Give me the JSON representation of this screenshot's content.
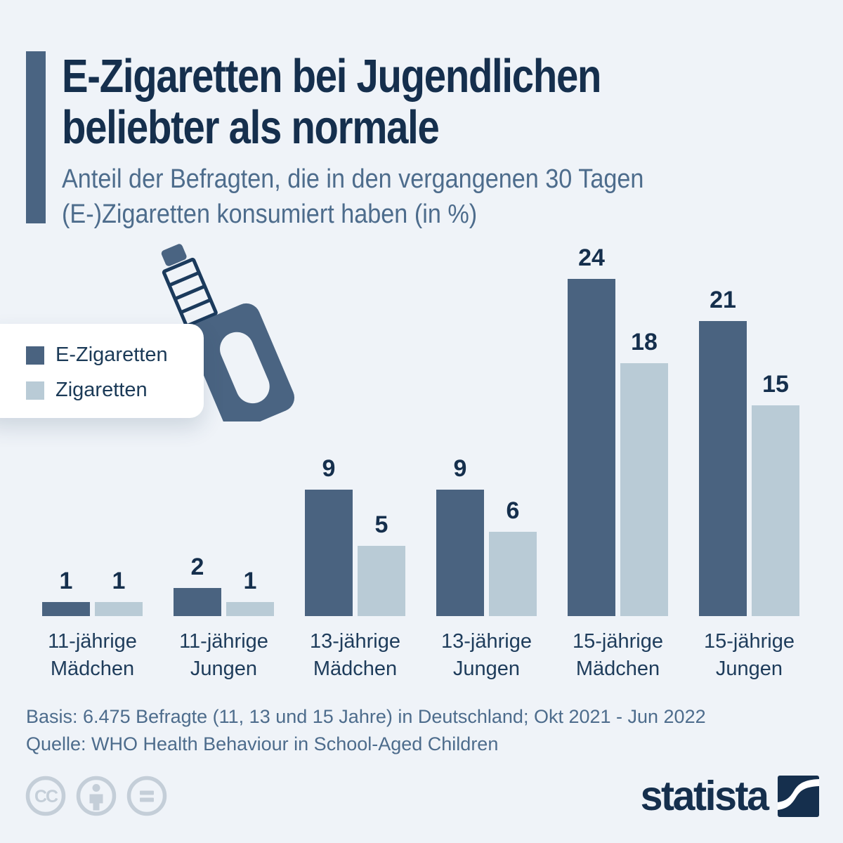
{
  "header": {
    "title_line1": "E-Zigaretten bei Jugendlichen",
    "title_line2": "beliebter als normale",
    "subtitle_line1": "Anteil der Befragten, die in den vergangenen 30 Tagen",
    "subtitle_line2": "(E-)Zigaretten konsumiert haben (in %)"
  },
  "legend": {
    "items": [
      {
        "label": "E-Zigaretten",
        "color": "#4a6380"
      },
      {
        "label": "Zigaretten",
        "color": "#b9cbd6"
      }
    ]
  },
  "chart_data": {
    "type": "bar",
    "title": "E-Zigaretten bei Jugendlichen beliebter als normale",
    "subtitle": "Anteil der Befragten, die in den vergangenen 30 Tagen (E-)Zigaretten konsumiert haben (in %)",
    "categories": [
      [
        "11-jährige",
        "Mädchen"
      ],
      [
        "11-jährige",
        "Jungen"
      ],
      [
        "13-jährige",
        "Mädchen"
      ],
      [
        "13-jährige",
        "Jungen"
      ],
      [
        "15-jährige",
        "Mädchen"
      ],
      [
        "15-jährige",
        "Jungen"
      ]
    ],
    "series": [
      {
        "name": "E-Zigaretten",
        "values": [
          1,
          2,
          9,
          9,
          24,
          21
        ],
        "color": "#4a6380"
      },
      {
        "name": "Zigaretten",
        "values": [
          1,
          1,
          5,
          6,
          18,
          15
        ],
        "color": "#b9cbd6"
      }
    ],
    "unit": "%",
    "ylim": [
      0,
      24
    ],
    "grid": false,
    "value_labels": true,
    "legend_position": "left"
  },
  "footer": {
    "basis": "Basis: 6.475 Befragte (11, 13 und 15 Jahre) in Deutschland; Okt 2021 - Jun 2022",
    "quelle": "Quelle: WHO Health Behaviour in School-Aged Children"
  },
  "branding": {
    "logo_text": "statista"
  },
  "license_icons": [
    "cc",
    "by",
    "nd"
  ],
  "colors": {
    "background": "#eff3f8",
    "title_text": "#152f4d",
    "subtitle_text": "#4d6c8c",
    "category_text": "#1e3c5b",
    "accent_bar": "#4a6482",
    "bar_dark": "#4a6380",
    "bar_light": "#b9cbd6",
    "vape_outline": "#1b3a5c",
    "cc_gray": "#c4ced8",
    "legend_card": "#ffffff"
  }
}
